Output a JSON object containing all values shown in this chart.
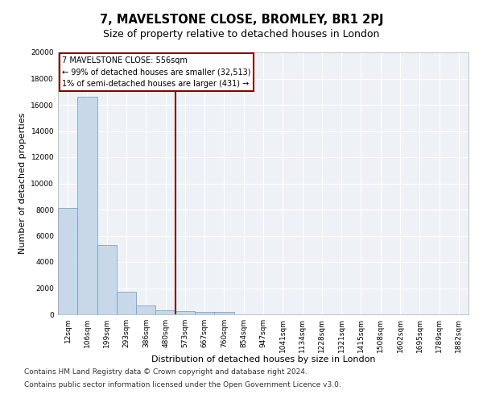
{
  "title": "7, MAVELSTONE CLOSE, BROMLEY, BR1 2PJ",
  "subtitle": "Size of property relative to detached houses in London",
  "xlabel": "Distribution of detached houses by size in London",
  "ylabel": "Number of detached properties",
  "categories": [
    "12sqm",
    "106sqm",
    "199sqm",
    "293sqm",
    "386sqm",
    "480sqm",
    "573sqm",
    "667sqm",
    "760sqm",
    "854sqm",
    "947sqm",
    "1041sqm",
    "1134sqm",
    "1228sqm",
    "1321sqm",
    "1415sqm",
    "1508sqm",
    "1602sqm",
    "1695sqm",
    "1789sqm",
    "1882sqm"
  ],
  "values": [
    8100,
    16600,
    5300,
    1750,
    680,
    330,
    270,
    200,
    170,
    0,
    0,
    0,
    0,
    0,
    0,
    0,
    0,
    0,
    0,
    0,
    0
  ],
  "bar_color": "#c8d8e8",
  "bar_edge_color": "#6699bb",
  "vline_x": 5.5,
  "vline_color": "#8b0000",
  "annotation_title": "7 MAVELSTONE CLOSE: 556sqm",
  "annotation_line1": "← 99% of detached houses are smaller (32,513)",
  "annotation_line2": "1% of semi-detached houses are larger (431) →",
  "annotation_box_color": "#8b0000",
  "ylim": [
    0,
    20000
  ],
  "yticks": [
    0,
    2000,
    4000,
    6000,
    8000,
    10000,
    12000,
    14000,
    16000,
    18000,
    20000
  ],
  "footnote1": "Contains HM Land Registry data © Crown copyright and database right 2024.",
  "footnote2": "Contains public sector information licensed under the Open Government Licence v3.0.",
  "bg_color": "#eef2f6",
  "grid_color": "#ffffff",
  "title_fontsize": 10.5,
  "subtitle_fontsize": 9,
  "label_fontsize": 8,
  "tick_fontsize": 6.5,
  "footnote_fontsize": 6.5,
  "fig_bg": "#ffffff"
}
